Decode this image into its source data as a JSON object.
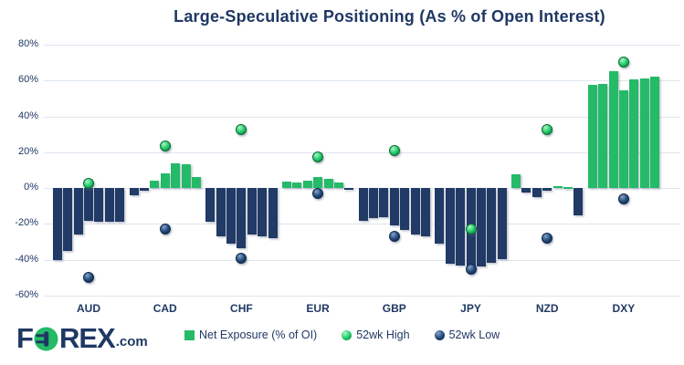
{
  "title": "Large-Speculative Positioning (As % of Open Interest)",
  "colors": {
    "green": "#24ba68",
    "navy": "#213a66",
    "text_navy": "#1f3864",
    "gridline": "#dee6ee"
  },
  "logo": {
    "text_f": "F",
    "text_rex": "REX",
    "text_com": ".com"
  },
  "legend": {
    "items": [
      {
        "label": "Net Exposure (% of OI)",
        "marker": "green-square"
      },
      {
        "label": "52wk High",
        "marker": "green-dot"
      },
      {
        "label": "52wk Low",
        "marker": "navy-dot"
      }
    ]
  },
  "chart_data": {
    "type": "bar",
    "title": "Large-Speculative Positioning (As % of Open Interest)",
    "xlabel": "",
    "ylabel": "",
    "ylim": [
      -60,
      80
    ],
    "grid": true,
    "legend_position": "bottom",
    "y_tick_values": [
      80,
      60,
      40,
      20,
      0,
      -20,
      -40,
      -60
    ],
    "y_tick_labels": [
      "80%",
      "60%",
      "40%",
      "20%",
      "0%",
      "-20%",
      "-40%",
      "-60%"
    ],
    "categories": [
      "AUD",
      "CAD",
      "CHF",
      "EUR",
      "GBP",
      "JPY",
      "NZD",
      "DXY"
    ],
    "bars_per_group": 7,
    "groups": [
      {
        "currency": "AUD",
        "net_exposure_bars": [
          -40,
          -35,
          -26,
          -18.5,
          -19,
          -19,
          -19
        ],
        "high_52wk": 2.5,
        "low_52wk": -50
      },
      {
        "currency": "CAD",
        "net_exposure_bars": [
          -4,
          -1.5,
          4,
          8,
          14,
          13.5,
          6
        ],
        "high_52wk": 23.5,
        "low_52wk": -23
      },
      {
        "currency": "CHF",
        "net_exposure_bars": [
          -19,
          -27,
          -31,
          -33.5,
          -26,
          -27,
          -28
        ],
        "high_52wk": 32.5,
        "low_52wk": -39
      },
      {
        "currency": "EUR",
        "net_exposure_bars": [
          3.5,
          3,
          4,
          6,
          5,
          3,
          -1
        ],
        "high_52wk": 17.5,
        "low_52wk": -3
      },
      {
        "currency": "GBP",
        "net_exposure_bars": [
          -18.5,
          -17,
          -16.5,
          -21,
          -23.5,
          -26,
          -27
        ],
        "high_52wk": 21,
        "low_52wk": -27
      },
      {
        "currency": "JPY",
        "net_exposure_bars": [
          -31,
          -42,
          -43.5,
          -45.5,
          -44,
          -41.5,
          -39.5
        ],
        "high_52wk": -23,
        "low_52wk": -45
      },
      {
        "currency": "NZD",
        "net_exposure_bars": [
          7.5,
          -2.5,
          -5,
          -1.5,
          1,
          0.5,
          -15
        ],
        "high_52wk": 32.5,
        "low_52wk": -28
      },
      {
        "currency": "DXY",
        "net_exposure_bars": [
          57.5,
          58,
          65.5,
          54.5,
          60.5,
          61,
          62
        ],
        "high_52wk": 70.5,
        "low_52wk": -6
      }
    ],
    "series": [
      {
        "name": "Net Exposure (% of OI)",
        "type": "bar"
      },
      {
        "name": "52wk High",
        "type": "point"
      },
      {
        "name": "52wk Low",
        "type": "point"
      }
    ]
  }
}
